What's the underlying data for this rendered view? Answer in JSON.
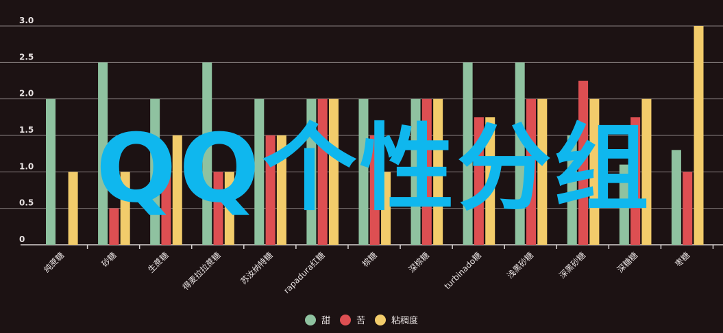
{
  "chart_data": {
    "type": "bar",
    "categories": [
      "纯蔗糖",
      "砂糖",
      "生蔗糖",
      "得麦拉拉蔗糖",
      "苏汝纳特糖",
      "rapadura红糖",
      "棕糖",
      "深棕糖",
      "turbinado糖",
      "浅黑砂糖",
      "深黑砂糖",
      "深糖糖",
      "枣糖"
    ],
    "series": [
      {
        "name": "甜",
        "color": "#8fc2a0",
        "values": [
          2.0,
          2.5,
          2.0,
          2.5,
          2.0,
          2.0,
          2.0,
          2.0,
          2.5,
          2.5,
          1.5,
          1.1,
          1.3
        ]
      },
      {
        "name": "苦",
        "color": "#dd4f52",
        "values": [
          0,
          0.5,
          1.0,
          1.0,
          1.5,
          2.0,
          1.5,
          2.0,
          1.75,
          2.0,
          2.25,
          1.75,
          1.0
        ]
      },
      {
        "name": "粘稠度",
        "color": "#f2cc6b",
        "values": [
          1.0,
          1.0,
          1.5,
          1.0,
          1.5,
          2.0,
          1.0,
          2.0,
          1.75,
          2.0,
          2.0,
          2.0,
          3.0
        ]
      }
    ],
    "y_ticks": [
      "0",
      "0.5",
      "1.0",
      "1.5",
      "2.0",
      "2.5",
      "3.0"
    ],
    "ylim": [
      0,
      3
    ],
    "grid": true,
    "legend_position": "bottom-center",
    "title": "",
    "xlabel": "",
    "ylabel": ""
  },
  "watermark": "QQ个性分组"
}
